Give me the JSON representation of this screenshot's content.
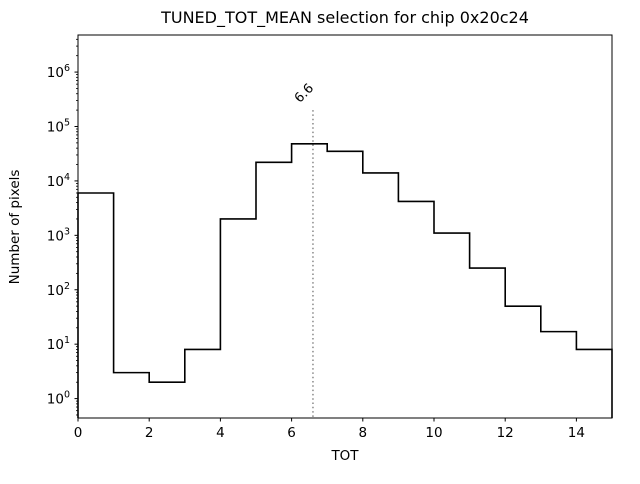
{
  "figure": {
    "background": "#ffffff"
  },
  "chart_data": {
    "type": "step-histogram",
    "title": "TUNED_TOT_MEAN selection for chip 0x20c24",
    "xlabel": "TOT",
    "ylabel": "Number of pixels",
    "yscale": "log",
    "grid": false,
    "legend": "none",
    "xlim": [
      0,
      15
    ],
    "ylim": [
      0.44,
      4800000
    ],
    "xticks": [
      0,
      2,
      4,
      6,
      8,
      10,
      12,
      14
    ],
    "ytick_exponents": [
      0,
      1,
      2,
      3,
      4,
      5,
      6
    ],
    "bin_edges": [
      0,
      1,
      2,
      3,
      4,
      5,
      6,
      7,
      8,
      9,
      10,
      11,
      12,
      13,
      14,
      15
    ],
    "counts": [
      6000,
      3,
      2,
      8,
      2000,
      22000,
      48000,
      35000,
      14000,
      4200,
      1100,
      250,
      50,
      17,
      8
    ],
    "line_color": "#000000",
    "vline": {
      "x": 6.6,
      "label": "6.6",
      "top_value": 200000,
      "color": "#7f7f7f",
      "label_color": "#8a8a8a",
      "style": "dotted"
    }
  }
}
